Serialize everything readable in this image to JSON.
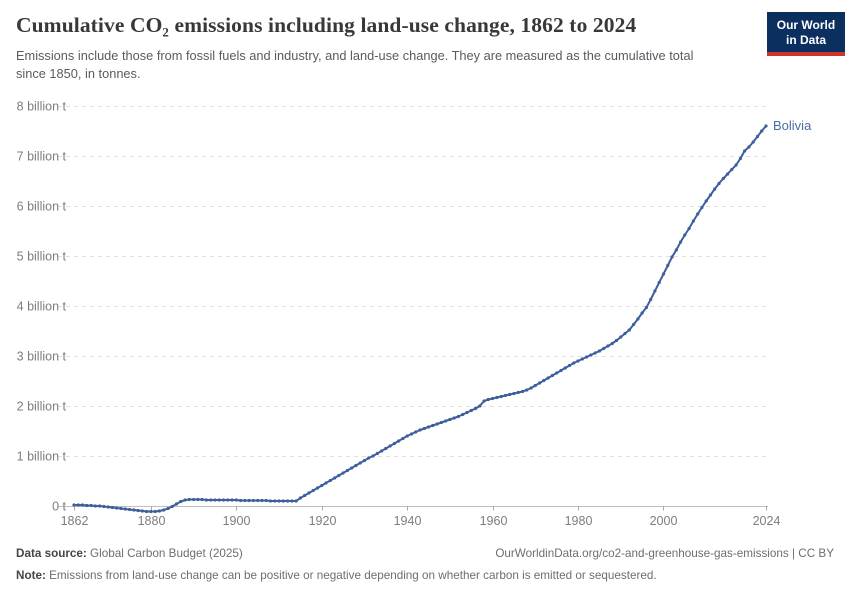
{
  "header": {
    "title": "Cumulative CO₂ emissions including land-use change, 1862 to 2024",
    "subtitle": "Emissions include those from fossil fuels and industry, and land-use change. They are measured as the cumulative total since 1850, in tonnes.",
    "logo": {
      "line1": "Our World",
      "line2": "in Data",
      "bg_color": "#0b2f5f",
      "accent_color": "#cf3428"
    }
  },
  "chart_data": {
    "type": "line",
    "title": "Cumulative CO₂ emissions including land-use change, 1862 to 2024",
    "xlabel": "",
    "ylabel": "",
    "grid": "horizontal-dashed",
    "legend_position": "end-of-line-label",
    "xlim": [
      1862,
      2024
    ],
    "ylim": [
      0,
      8
    ],
    "x_ticks": [
      1862,
      1880,
      1900,
      1920,
      1940,
      1960,
      1980,
      2000,
      2024
    ],
    "y_ticks": [
      {
        "value": 0,
        "label": "0 t"
      },
      {
        "value": 1,
        "label": "1 billion t"
      },
      {
        "value": 2,
        "label": "2 billion t"
      },
      {
        "value": 3,
        "label": "3 billion t"
      },
      {
        "value": 4,
        "label": "4 billion t"
      },
      {
        "value": 5,
        "label": "5 billion t"
      },
      {
        "value": 6,
        "label": "6 billion t"
      },
      {
        "value": 7,
        "label": "7 billion t"
      },
      {
        "value": 8,
        "label": "8 billion t"
      }
    ],
    "y_unit": "billion t",
    "series": [
      {
        "name": "Bolivia",
        "color": "#3e5f9c",
        "label_color": "#4c6ba6",
        "x_start": 1862,
        "x_step": 1,
        "values": [
          0.02,
          0.02,
          0.02,
          0.01,
          0.01,
          0.0,
          0.0,
          -0.01,
          -0.02,
          -0.03,
          -0.04,
          -0.05,
          -0.06,
          -0.07,
          -0.08,
          -0.09,
          -0.1,
          -0.11,
          -0.11,
          -0.11,
          -0.1,
          -0.08,
          -0.05,
          -0.01,
          0.04,
          0.09,
          0.12,
          0.13,
          0.13,
          0.13,
          0.13,
          0.12,
          0.12,
          0.12,
          0.12,
          0.12,
          0.12,
          0.12,
          0.12,
          0.11,
          0.11,
          0.11,
          0.11,
          0.11,
          0.11,
          0.11,
          0.1,
          0.1,
          0.1,
          0.1,
          0.1,
          0.1,
          0.1,
          0.16,
          0.21,
          0.26,
          0.31,
          0.36,
          0.41,
          0.46,
          0.51,
          0.56,
          0.61,
          0.66,
          0.71,
          0.76,
          0.81,
          0.86,
          0.91,
          0.96,
          1.0,
          1.05,
          1.1,
          1.15,
          1.2,
          1.25,
          1.3,
          1.35,
          1.4,
          1.44,
          1.48,
          1.52,
          1.55,
          1.58,
          1.61,
          1.64,
          1.67,
          1.7,
          1.73,
          1.76,
          1.79,
          1.83,
          1.87,
          1.91,
          1.95,
          2.0,
          2.1,
          2.13,
          2.15,
          2.17,
          2.19,
          2.21,
          2.23,
          2.25,
          2.27,
          2.29,
          2.32,
          2.36,
          2.41,
          2.46,
          2.51,
          2.56,
          2.61,
          2.66,
          2.71,
          2.76,
          2.81,
          2.86,
          2.9,
          2.94,
          2.98,
          3.02,
          3.06,
          3.1,
          3.15,
          3.2,
          3.25,
          3.31,
          3.38,
          3.45,
          3.52,
          3.63,
          3.74,
          3.86,
          3.97,
          4.13,
          4.3,
          4.47,
          4.64,
          4.81,
          4.98,
          5.12,
          5.28,
          5.42,
          5.55,
          5.7,
          5.84,
          5.97,
          6.1,
          6.22,
          6.34,
          6.45,
          6.55,
          6.64,
          6.73,
          6.82,
          6.95,
          7.1,
          7.18,
          7.28,
          7.39,
          7.5,
          7.6
        ]
      }
    ],
    "end_label": "Bolivia"
  },
  "footer": {
    "datasource_label": "Data source:",
    "datasource_value": " Global Carbon Budget (2025)",
    "url_text": "OurWorldinData.org/co2-and-greenhouse-gas-emissions | CC BY",
    "note_label": "Note:",
    "note_value": " Emissions from land-use change can be positive or negative depending on whether carbon is emitted or sequestered."
  }
}
